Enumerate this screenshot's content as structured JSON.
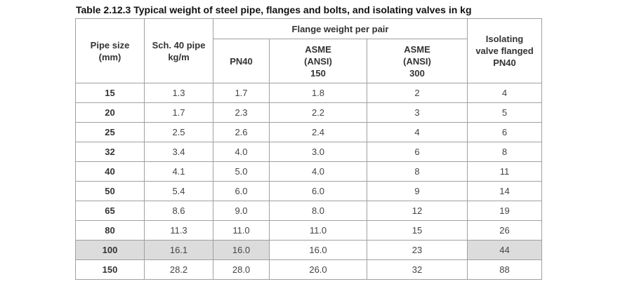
{
  "caption": "Table 2.12.3 Typical weight of steel pipe, flanges and bolts, and isolating valves in kg",
  "headers": {
    "pipe_size": [
      "Pipe size",
      "(mm)"
    ],
    "sch40": [
      "Sch. 40 pipe",
      "kg/m"
    ],
    "flange_group": "Flange weight per pair",
    "pn40": [
      "PN40"
    ],
    "asme150": [
      "ASME",
      "(ANSI)",
      "150"
    ],
    "asme300": [
      "ASME",
      "(ANSI)",
      "300"
    ],
    "isolating": [
      "Isolating",
      "valve flanged",
      "PN40"
    ]
  },
  "rows": [
    {
      "size": "15",
      "sch40": "1.3",
      "pn40": "1.7",
      "asme150": "1.8",
      "asme300": "2",
      "valve": "4"
    },
    {
      "size": "20",
      "sch40": "1.7",
      "pn40": "2.3",
      "asme150": "2.2",
      "asme300": "3",
      "valve": "5"
    },
    {
      "size": "25",
      "sch40": "2.5",
      "pn40": "2.6",
      "asme150": "2.4",
      "asme300": "4",
      "valve": "6"
    },
    {
      "size": "32",
      "sch40": "3.4",
      "pn40": "4.0",
      "asme150": "3.0",
      "asme300": "6",
      "valve": "8"
    },
    {
      "size": "40",
      "sch40": "4.1",
      "pn40": "5.0",
      "asme150": "4.0",
      "asme300": "8",
      "valve": "11"
    },
    {
      "size": "50",
      "sch40": "5.4",
      "pn40": "6.0",
      "asme150": "6.0",
      "asme300": "9",
      "valve": "14"
    },
    {
      "size": "65",
      "sch40": "8.6",
      "pn40": "9.0",
      "asme150": "8.0",
      "asme300": "12",
      "valve": "19"
    },
    {
      "size": "80",
      "sch40": "11.3",
      "pn40": "11.0",
      "asme150": "11.0",
      "asme300": "15",
      "valve": "26"
    },
    {
      "size": "100",
      "sch40": "16.1",
      "pn40": "16.0",
      "asme150": "16.0",
      "asme300": "23",
      "valve": "44"
    },
    {
      "size": "150",
      "sch40": "28.2",
      "pn40": "28.0",
      "asme150": "26.0",
      "asme300": "32",
      "valve": "88"
    }
  ],
  "highlight_color": "#dcdcdc"
}
